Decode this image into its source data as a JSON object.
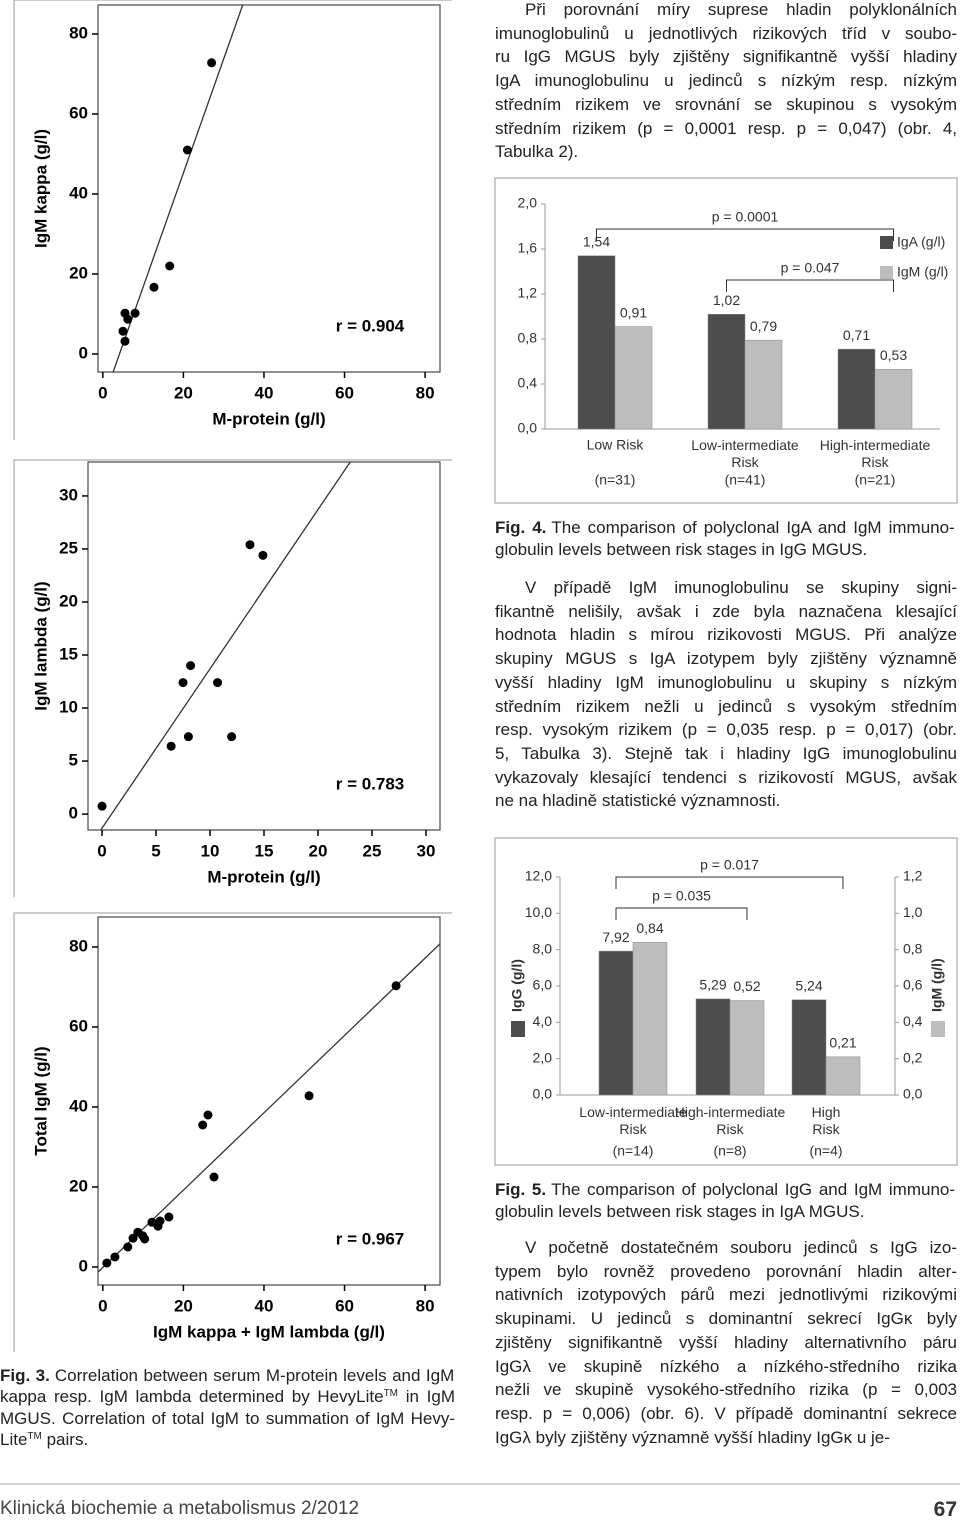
{
  "paragraphs": [
    [
      "Při porovnání míry suprese hladin polyklonálních",
      "imunoglobulinů u jednotlivých rizikových tříd v soubo-",
      "ru IgG MGUS byly zjištěny signifikantně vyšší hladiny",
      "IgA imunoglobulinu u jedinců s nízkým resp. nízkým",
      "středním rizikem ve srovnání se skupinou s vysokým",
      "středním rizikem (p = 0,0001 resp. p = 0,047) (obr. 4,",
      "Tabulka 2)."
    ],
    [
      "V případě IgM imunoglobulinu se skupiny signi-",
      "fikantně nelišily, avšak i zde byla naznačena klesající",
      "hodnota hladin s mírou rizikovosti MGUS. Při analýze",
      "skupiny MGUS s IgA izotypem byly zjištěny významně",
      "vyšší hladiny IgM imunoglobulinu u skupiny s nízkým",
      "středním rizikem nežli u jedinců s vysokým středním",
      "resp. vysokým rizikem (p = 0,035 resp. p = 0,017) (obr.",
      "5, Tabulka 3). Stejně tak i hladiny IgG imunoglobulinu",
      "vykazovaly klesající tendenci s rizikovostí MGUS, avšak",
      "ne na hladině statistické významnosti."
    ],
    [
      "V početně dostatečném souboru jedinců s IgG izo-",
      "typem bylo rovněž provedeno porovnání hladin alter-",
      "nativních izotypových párů mezi jednotlivými rizikovými",
      "skupinami. U jedinců s dominantní sekrecí IgGκ byly",
      "zjištěny signifikantně vyšší hladiny alternativního páru",
      "IgGλ ve skupině nízkého a nízkého-středního rizika",
      "nežli ve skupině vysokého-středního rizika (p = 0,003",
      "resp. p = 0,006) (obr. 6). V případě dominantní sekrece",
      "IgGλ byly zjištěny významně vyšší hladiny IgGκ u je-"
    ]
  ],
  "captions": {
    "fig3": {
      "label": "Fig. 3.",
      "lines": [
        [
          "Correlation between serum M-protein levels and IgM"
        ],
        [
          "kappa resp. IgM lambda determined by HevyLite",
          "TM",
          " in IgM"
        ],
        [
          "MGUS. Correlation of total IgM to summation of IgM Hevy-"
        ],
        [
          "Lite",
          "TM",
          " pairs."
        ]
      ]
    },
    "fig4": {
      "label": "Fig. 4.",
      "lines": [
        [
          "The comparison of polyclonal IgA and IgM immuno-"
        ],
        [
          "globulin levels between risk stages in IgG MGUS."
        ]
      ]
    },
    "fig5": {
      "label": "Fig. 5.",
      "lines": [
        [
          "The comparison of polyclonal IgG and IgM immuno-"
        ],
        [
          "globulin levels between risk stages in IgA MGUS."
        ]
      ]
    }
  },
  "footer": {
    "journal": "Klinická biochemie a metabolismus 2/2012",
    "page": "67"
  },
  "chart_data": [
    {
      "type": "scatter",
      "x": [
        27,
        21,
        16.6,
        12.7,
        5.5,
        8,
        6.2,
        5,
        5.5
      ],
      "values": [
        72.8,
        51,
        22,
        16.7,
        10.2,
        10.2,
        8.7,
        5.7,
        3.2
      ],
      "color": "#000000",
      "xlabel": "M-protein (g/l)",
      "ylabel": "IgM kappa (g/l)",
      "annotation": "r = 0.904",
      "xlim": [
        -1.2,
        83.7
      ],
      "ylim": [
        -4.5,
        87.25
      ],
      "xticks": [
        0,
        20,
        40,
        60,
        80
      ],
      "yticks": [
        0,
        20,
        40,
        60,
        80
      ],
      "trendline": true
    },
    {
      "type": "scatter",
      "x": [
        0,
        6.4,
        8,
        12,
        7.5,
        8.2,
        10.7,
        13.7,
        14.9
      ],
      "values": [
        0.75,
        6.4,
        7.3,
        7.3,
        12.4,
        14,
        12.4,
        25.4,
        24.4
      ],
      "color": "#000000",
      "xlabel": "M-protein (g/l)",
      "ylabel": "IgM lambda (g/l)",
      "annotation": "r = 0.783",
      "xlim": [
        -1.3,
        31.3
      ],
      "ylim": [
        -1.5,
        33.2
      ],
      "xticks": [
        0,
        5,
        10,
        15,
        20,
        25,
        30
      ],
      "yticks": [
        0,
        5,
        10,
        15,
        20,
        25,
        30
      ],
      "trendline": true
    },
    {
      "type": "scatter",
      "x": [
        72.8,
        51.2,
        26.1,
        24.8,
        27.6,
        16.4,
        14.2,
        12.2,
        13.7,
        8.7,
        9.9,
        10.4,
        7.5,
        6.2,
        3,
        1
      ],
      "values": [
        70.3,
        42.8,
        38,
        35.5,
        22.5,
        12.5,
        11.5,
        11.2,
        10.2,
        8.7,
        7.8,
        7,
        7.2,
        5,
        2.5,
        1
      ],
      "color": "#000000",
      "xlabel": "IgM kappa + IgM lambda (g/l)",
      "ylabel": "Total IgM (g/l)",
      "annotation": "r = 0.967",
      "xlim": [
        -1.2,
        83.7
      ],
      "ylim": [
        -4.5,
        87.5
      ],
      "xticks": [
        0,
        20,
        40,
        60,
        80
      ],
      "yticks": [
        0,
        20,
        40,
        60,
        80
      ],
      "trendline": true
    },
    {
      "type": "bar",
      "categories": [
        "Low Risk",
        "Low-intermediate Risk",
        "High-intermediate Risk"
      ],
      "sample_sizes": [
        "(n=31)",
        "(n=41)",
        "(n=21)"
      ],
      "series": [
        {
          "name": "IgA (g/l)",
          "color": "#4d4d4d",
          "values": [
            1.54,
            1.02,
            0.71
          ],
          "value_labels": [
            "1,54",
            "1,02",
            "0,71"
          ]
        },
        {
          "name": "IgM (g/l)",
          "color": "#bdbdbd",
          "values": [
            0.91,
            0.79,
            0.53
          ],
          "value_labels": [
            "0,91",
            "0,79",
            "0,53"
          ]
        }
      ],
      "ylim": [
        0,
        2
      ],
      "yticks": [
        {
          "value": 0,
          "label": "0,0"
        },
        {
          "value": 0.4,
          "label": "0,4"
        },
        {
          "value": 0.8,
          "label": "0,8"
        },
        {
          "value": 1.2,
          "label": "1,2"
        },
        {
          "value": 1.6,
          "label": "1,6"
        },
        {
          "value": 2,
          "label": "2,0"
        }
      ],
      "annotations": [
        "p = 0.0001",
        "p = 0.047"
      ],
      "legend": "upper right"
    },
    {
      "type": "bar",
      "categories": [
        "Low-intermediate Risk",
        "High-intermediate Risk",
        "High Risk"
      ],
      "sample_sizes": [
        "(n=14)",
        "(n=8)",
        "(n=4)"
      ],
      "series": [
        {
          "name": "IgG (g/l)",
          "color": "#4d4d4d",
          "values": [
            7.92,
            5.29,
            5.24
          ],
          "value_labels": [
            "7,92",
            "5,29",
            "5,24"
          ]
        },
        {
          "name": "IgM (g/l)",
          "color": "#bdbdbd",
          "axis": "y2",
          "values": [
            0.84,
            0.52,
            0.21
          ],
          "value_labels": [
            "0,84",
            "0,52",
            "0,21"
          ]
        }
      ],
      "ylim": [
        0,
        12
      ],
      "yticks": [
        {
          "value": 0,
          "label": "0,0"
        },
        {
          "value": 2,
          "label": "2,0"
        },
        {
          "value": 4,
          "label": "4,0"
        },
        {
          "value": 6,
          "label": "6,0"
        },
        {
          "value": 8,
          "label": "8,0"
        },
        {
          "value": 10,
          "label": "10,0"
        },
        {
          "value": 12,
          "label": "12,0"
        }
      ],
      "y2lim": [
        0,
        1.2
      ],
      "y2ticks": [
        {
          "value": 0,
          "label": "0,0"
        },
        {
          "value": 0.2,
          "label": "0,2"
        },
        {
          "value": 0.4,
          "label": "0,4"
        },
        {
          "value": 0.6,
          "label": "0,6"
        },
        {
          "value": 0.8,
          "label": "0,8"
        },
        {
          "value": 1,
          "label": "1,0"
        },
        {
          "value": 1.2,
          "label": "1,2"
        }
      ],
      "annotations": [
        "p = 0.017",
        "p = 0.035"
      ]
    }
  ]
}
